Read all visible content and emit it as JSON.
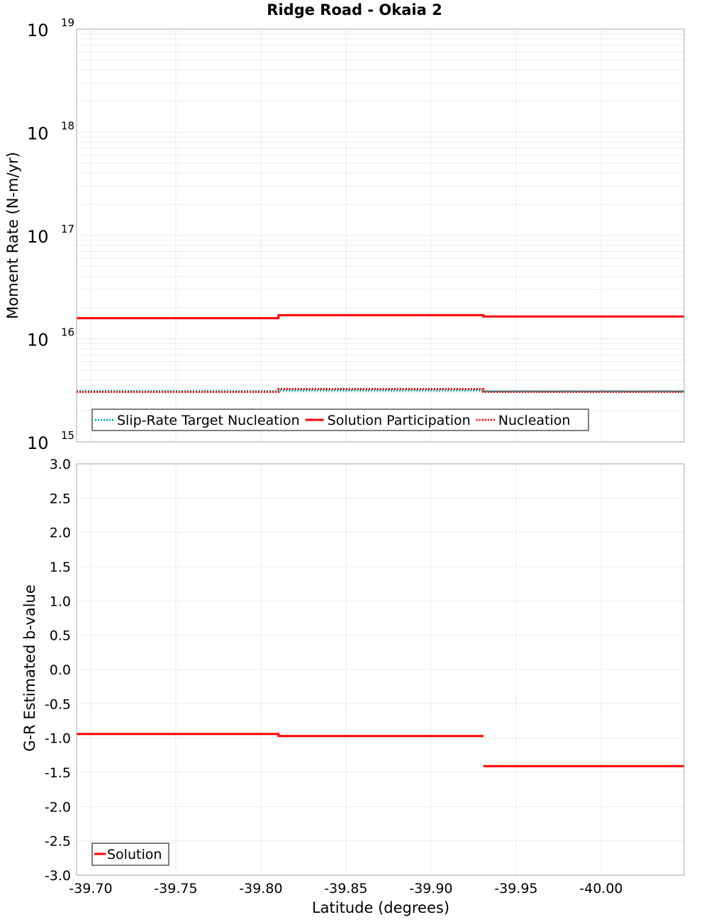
{
  "title": "Ridge Road - Okaia 2",
  "chart_data": [
    {
      "type": "line",
      "subtype": "step",
      "title": "Ridge Road - Okaia 2",
      "xlabel": "",
      "ylabel": "Moment Rate (N-m/yr)",
      "yscale": "log",
      "ylim": [
        1000000000000000.0,
        1e+19
      ],
      "xlim": [
        -39.6917,
        -40.0488
      ],
      "y_tick_labels": [
        {
          "base": "10",
          "exp": "15",
          "value": 1000000000000000.0
        },
        {
          "base": "10",
          "exp": "16",
          "value": 1e+16
        },
        {
          "base": "10",
          "exp": "17",
          "value": 1e+17
        },
        {
          "base": "10",
          "exp": "18",
          "value": 1e+18
        },
        {
          "base": "10",
          "exp": "19",
          "value": 1e+19
        }
      ],
      "grid": true,
      "legend_position": "lower-left",
      "x_segments": [
        [
          -39.6917,
          -39.8104
        ],
        [
          -39.8104,
          -39.9308
        ],
        [
          -39.9308,
          -40.0488
        ]
      ],
      "series": [
        {
          "name": "Slip-Rate Target Nucleation",
          "color": "#00b0b8",
          "style": "dotted",
          "values": [
            3100000000000000.0,
            3150000000000000.0,
            3100000000000000.0
          ]
        },
        {
          "name": "Solution Participation",
          "color": "#ff0000",
          "style": "solid",
          "values": [
            1.58e+16,
            1.69e+16,
            1.64e+16
          ]
        },
        {
          "name": "Nucleation",
          "color": "#ff0000",
          "style": "dotted",
          "values": [
            3050000000000000.0,
            3250000000000000.0,
            3050000000000000.0
          ]
        }
      ]
    },
    {
      "type": "line",
      "subtype": "step",
      "xlabel": "Latitude (degrees)",
      "ylabel": "G-R Estimated b-value",
      "ylim": [
        -3.0,
        3.0
      ],
      "xlim": [
        -39.6917,
        -40.0488
      ],
      "y_ticks": [
        3.0,
        2.5,
        2.0,
        1.5,
        1.0,
        0.5,
        0.0,
        -0.5,
        -1.0,
        -1.5,
        -2.0,
        -2.5,
        -3.0
      ],
      "y_tick_labels": [
        "3.0",
        "2.5",
        "2.0",
        "1.5",
        "1.0",
        "0.5",
        "0.0",
        "-0.5",
        "-1.0",
        "-1.5",
        "-2.0",
        "-2.5",
        "-3.0"
      ],
      "x_ticks": [
        -39.7,
        -39.75,
        -39.8,
        -39.85,
        -39.9,
        -39.95,
        -40.0
      ],
      "x_tick_labels": [
        "-39.70",
        "-39.75",
        "-39.80",
        "-39.85",
        "-39.90",
        "-39.95",
        "-40.00"
      ],
      "grid": true,
      "legend_position": "lower-left",
      "x_segments": [
        [
          -39.6917,
          -39.8104
        ],
        [
          -39.8104,
          -39.9308
        ],
        [
          -39.9308,
          -40.0488
        ]
      ],
      "series": [
        {
          "name": "Solution",
          "color": "#ff0000",
          "style": "solid",
          "values": [
            -0.94,
            -0.97,
            -1.41
          ]
        }
      ]
    }
  ],
  "colors": {
    "grid": "#ebebeb",
    "frame": "#a8a8a8",
    "legend_border": "#555555"
  }
}
